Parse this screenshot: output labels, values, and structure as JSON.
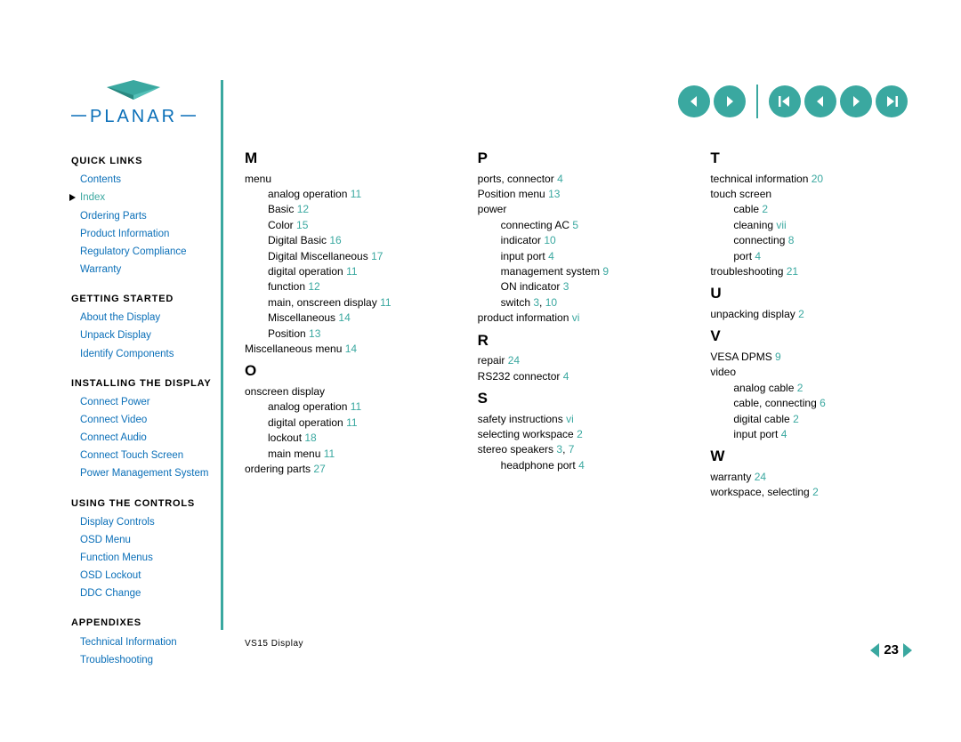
{
  "colors": {
    "accent": "#3aa8a0",
    "link": "#0a6fb8",
    "text": "#000000",
    "bg": "#ffffff"
  },
  "logo_text": "PLANAR",
  "sidebar": {
    "sections": [
      {
        "title": "QUICK LINKS",
        "items": [
          {
            "label": "Contents"
          },
          {
            "label": "Index",
            "current": true
          },
          {
            "label": "Ordering Parts"
          },
          {
            "label": "Product Information"
          },
          {
            "label": "Regulatory Compliance"
          },
          {
            "label": "Warranty"
          }
        ]
      },
      {
        "title": "GETTING STARTED",
        "items": [
          {
            "label": "About the Display"
          },
          {
            "label": "Unpack Display"
          },
          {
            "label": "Identify Components"
          }
        ]
      },
      {
        "title": "INSTALLING THE DISPLAY",
        "items": [
          {
            "label": "Connect Power"
          },
          {
            "label": "Connect Video"
          },
          {
            "label": "Connect Audio"
          },
          {
            "label": "Connect Touch Screen"
          },
          {
            "label": "Power Management System"
          }
        ]
      },
      {
        "title": "USING THE CONTROLS",
        "items": [
          {
            "label": "Display Controls"
          },
          {
            "label": "OSD Menu"
          },
          {
            "label": "Function Menus"
          },
          {
            "label": "OSD Lockout"
          },
          {
            "label": "DDC Change"
          }
        ]
      },
      {
        "title": "APPENDIXES",
        "items": [
          {
            "label": "Technical Information"
          },
          {
            "label": "Troubleshooting"
          }
        ]
      }
    ]
  },
  "index": {
    "col1": [
      {
        "type": "letter",
        "text": "M"
      },
      {
        "type": "entry",
        "text": "menu"
      },
      {
        "type": "sub",
        "text": "analog operation",
        "pg": "11"
      },
      {
        "type": "sub",
        "text": "Basic",
        "pg": "12"
      },
      {
        "type": "sub",
        "text": "Color",
        "pg": "15"
      },
      {
        "type": "sub",
        "text": "Digital Basic",
        "pg": "16"
      },
      {
        "type": "sub",
        "text": "Digital Miscellaneous",
        "pg": "17"
      },
      {
        "type": "sub",
        "text": "digital operation",
        "pg": "11"
      },
      {
        "type": "sub",
        "text": "function",
        "pg": "12"
      },
      {
        "type": "sub",
        "text": "main, onscreen display",
        "pg": "11"
      },
      {
        "type": "sub",
        "text": "Miscellaneous",
        "pg": "14"
      },
      {
        "type": "sub",
        "text": "Position",
        "pg": "13"
      },
      {
        "type": "entry",
        "text": "Miscellaneous menu",
        "pg": "14"
      },
      {
        "type": "letter",
        "text": "O"
      },
      {
        "type": "entry",
        "text": "onscreen display"
      },
      {
        "type": "sub",
        "text": "analog operation",
        "pg": "11"
      },
      {
        "type": "sub",
        "text": "digital operation",
        "pg": "11"
      },
      {
        "type": "sub",
        "text": "lockout",
        "pg": "18"
      },
      {
        "type": "sub",
        "text": "main menu",
        "pg": "11"
      },
      {
        "type": "entry",
        "text": "ordering parts",
        "pg": "27"
      }
    ],
    "col2": [
      {
        "type": "letter",
        "text": "P"
      },
      {
        "type": "entry",
        "text": "ports, connector",
        "pg": "4"
      },
      {
        "type": "entry",
        "text": "Position menu",
        "pg": "13"
      },
      {
        "type": "entry",
        "text": "power"
      },
      {
        "type": "sub",
        "text": "connecting AC",
        "pg": "5"
      },
      {
        "type": "sub",
        "text": "indicator",
        "pg": "10"
      },
      {
        "type": "sub",
        "text": "input port",
        "pg": "4"
      },
      {
        "type": "sub",
        "text": "management system",
        "pg": "9"
      },
      {
        "type": "sub",
        "text": "ON indicator",
        "pg": "3"
      },
      {
        "type": "sub",
        "text": "switch",
        "pg": "3, 10"
      },
      {
        "type": "entry",
        "text": "product information",
        "pg": "vi",
        "roman": true
      },
      {
        "type": "letter",
        "text": "R"
      },
      {
        "type": "entry",
        "text": "repair",
        "pg": "24"
      },
      {
        "type": "entry",
        "text": "RS232 connector",
        "pg": "4"
      },
      {
        "type": "letter",
        "text": "S"
      },
      {
        "type": "entry",
        "text": "safety instructions",
        "pg": "vi",
        "roman": true
      },
      {
        "type": "entry",
        "text": "selecting workspace",
        "pg": "2"
      },
      {
        "type": "entry",
        "text": "stereo speakers",
        "pg": "3, 7"
      },
      {
        "type": "sub",
        "text": "headphone port",
        "pg": "4"
      }
    ],
    "col3": [
      {
        "type": "letter",
        "text": "T"
      },
      {
        "type": "entry",
        "text": "technical information",
        "pg": "20"
      },
      {
        "type": "entry",
        "text": "touch screen"
      },
      {
        "type": "sub",
        "text": "cable",
        "pg": "2"
      },
      {
        "type": "sub",
        "text": "cleaning",
        "pg": "vii",
        "roman": true
      },
      {
        "type": "sub",
        "text": "connecting",
        "pg": "8"
      },
      {
        "type": "sub",
        "text": "port",
        "pg": "4"
      },
      {
        "type": "entry",
        "text": "troubleshooting",
        "pg": "21"
      },
      {
        "type": "letter",
        "text": "U"
      },
      {
        "type": "entry",
        "text": "unpacking display",
        "pg": "2"
      },
      {
        "type": "letter",
        "text": "V"
      },
      {
        "type": "entry",
        "text": "VESA DPMS",
        "pg": "9"
      },
      {
        "type": "entry",
        "text": "video"
      },
      {
        "type": "sub",
        "text": "analog cable",
        "pg": "2"
      },
      {
        "type": "sub",
        "text": "cable, connecting",
        "pg": "6"
      },
      {
        "type": "sub",
        "text": "digital cable",
        "pg": "2"
      },
      {
        "type": "sub",
        "text": "input port",
        "pg": "4"
      },
      {
        "type": "letter",
        "text": "W"
      },
      {
        "type": "entry",
        "text": "warranty",
        "pg": "24"
      },
      {
        "type": "entry",
        "text": "workspace, selecting",
        "pg": "2"
      }
    ]
  },
  "footer": "VS15 Display",
  "page_number": "23"
}
